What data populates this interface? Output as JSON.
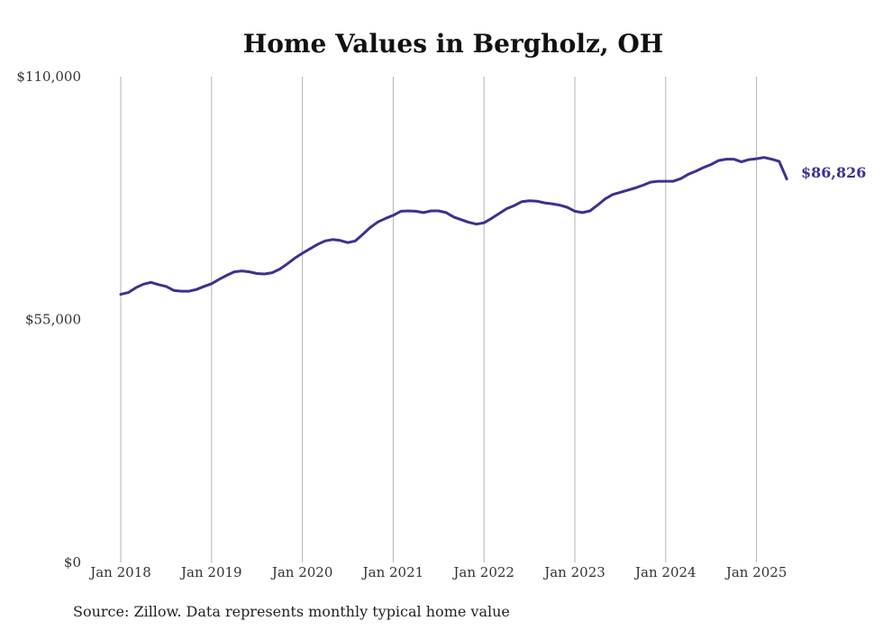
{
  "chart_data": {
    "type": "line",
    "title": "Home Values in Bergholz, OH",
    "source": "Source: Zillow. Data represents monthly typical home value",
    "xlabel": "",
    "ylabel": "",
    "ylim": [
      0,
      110000
    ],
    "xlim": [
      "2018-01",
      "2025-05"
    ],
    "y_ticks": [
      {
        "value": 0,
        "label": "$0"
      },
      {
        "value": 55000,
        "label": "$55,000"
      },
      {
        "value": 110000,
        "label": "$110,000"
      }
    ],
    "x_ticks": [
      {
        "value": "2018-01",
        "label": "Jan 2018"
      },
      {
        "value": "2019-01",
        "label": "Jan 2019"
      },
      {
        "value": "2020-01",
        "label": "Jan 2020"
      },
      {
        "value": "2021-01",
        "label": "Jan 2021"
      },
      {
        "value": "2022-01",
        "label": "Jan 2022"
      },
      {
        "value": "2023-01",
        "label": "Jan 2023"
      },
      {
        "value": "2024-01",
        "label": "Jan 2024"
      },
      {
        "value": "2025-01",
        "label": "Jan 2025"
      }
    ],
    "grid": {
      "vertical": true,
      "horizontal": false
    },
    "line_color": "#3d3190",
    "end_label": "$86,826",
    "series": [
      {
        "x": [
          "2018-01",
          "2018-02",
          "2018-03",
          "2018-04",
          "2018-05",
          "2018-06",
          "2018-07",
          "2018-08",
          "2018-09",
          "2018-10",
          "2018-11",
          "2018-12",
          "2019-01",
          "2019-02",
          "2019-03",
          "2019-04",
          "2019-05",
          "2019-06",
          "2019-07",
          "2019-08",
          "2019-09",
          "2019-10",
          "2019-11",
          "2019-12",
          "2020-01",
          "2020-02",
          "2020-03",
          "2020-04",
          "2020-05",
          "2020-06",
          "2020-07",
          "2020-08",
          "2020-09",
          "2020-10",
          "2020-11",
          "2020-12",
          "2021-01",
          "2021-02",
          "2021-03",
          "2021-04",
          "2021-05",
          "2021-06",
          "2021-07",
          "2021-08",
          "2021-09",
          "2021-10",
          "2021-11",
          "2021-12",
          "2022-01",
          "2022-02",
          "2022-03",
          "2022-04",
          "2022-05",
          "2022-06",
          "2022-07",
          "2022-08",
          "2022-09",
          "2022-10",
          "2022-11",
          "2022-12",
          "2023-01",
          "2023-02",
          "2023-03",
          "2023-04",
          "2023-05",
          "2023-06",
          "2023-07",
          "2023-08",
          "2023-09",
          "2023-10",
          "2023-11",
          "2023-12",
          "2024-01",
          "2024-02",
          "2024-03",
          "2024-04",
          "2024-05",
          "2024-06",
          "2024-07",
          "2024-08",
          "2024-09",
          "2024-10",
          "2024-11",
          "2024-12",
          "2025-01",
          "2025-02",
          "2025-03",
          "2025-04",
          "2025-05"
        ],
        "values": [
          60700,
          61100,
          62200,
          63000,
          63400,
          62900,
          62500,
          61600,
          61400,
          61400,
          61800,
          62500,
          63100,
          64100,
          65000,
          65800,
          66000,
          65800,
          65400,
          65300,
          65600,
          66400,
          67600,
          68900,
          70000,
          71000,
          72000,
          72800,
          73100,
          72900,
          72400,
          72800,
          74300,
          75900,
          77100,
          77900,
          78600,
          79500,
          79600,
          79500,
          79200,
          79600,
          79600,
          79200,
          78200,
          77600,
          77000,
          76600,
          76900,
          77900,
          79000,
          80100,
          80800,
          81700,
          81900,
          81800,
          81400,
          81200,
          80900,
          80400,
          79500,
          79200,
          79600,
          80900,
          82300,
          83300,
          83800,
          84300,
          84800,
          85400,
          86100,
          86300,
          86300,
          86300,
          86900,
          87900,
          88600,
          89400,
          90100,
          91000,
          91300,
          91300,
          90700,
          91200,
          91400,
          91700,
          91300,
          90800,
          86826
        ]
      }
    ]
  }
}
